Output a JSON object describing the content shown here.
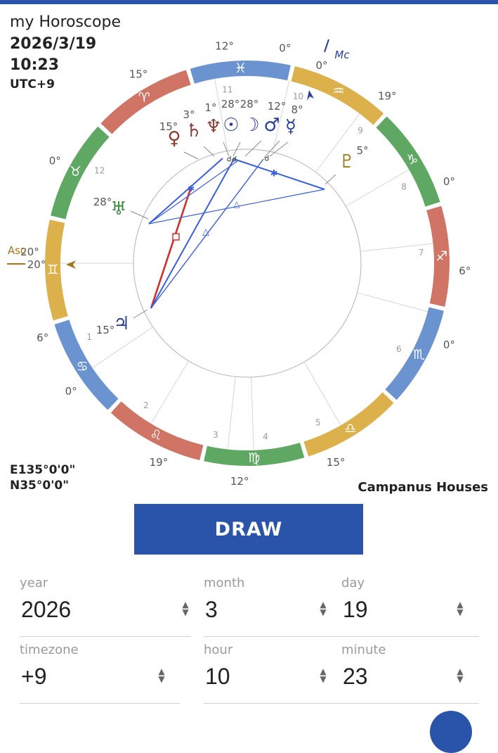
{
  "header": {
    "title": "my Horoscope",
    "date": "2026/3/19",
    "time": "10:23",
    "timezone": "UTC+9"
  },
  "location": {
    "longitude": "E135°0'0\"",
    "latitude": "N35°0'0\""
  },
  "house_system": "Campanus Houses",
  "chart": {
    "asc": {
      "label": "Asc",
      "degree": "20°"
    },
    "mc": {
      "label": "Mc",
      "degree": "0°"
    },
    "zodiac": [
      {
        "sign": "Pisces",
        "glyph": "♓",
        "color": "#6a93cf"
      },
      {
        "sign": "Aries",
        "glyph": "♈",
        "color": "#d07466"
      },
      {
        "sign": "Taurus",
        "glyph": "♉",
        "color": "#5ea863"
      },
      {
        "sign": "Gemini",
        "glyph": "♊",
        "color": "#dcb04a"
      },
      {
        "sign": "Cancer",
        "glyph": "♋",
        "color": "#6a93cf"
      },
      {
        "sign": "Leo",
        "glyph": "♌",
        "color": "#d07466"
      },
      {
        "sign": "Virgo",
        "glyph": "♍",
        "color": "#5ea863"
      },
      {
        "sign": "Libra",
        "glyph": "♎",
        "color": "#dcb04a"
      },
      {
        "sign": "Scorpio",
        "glyph": "♏",
        "color": "#6a93cf"
      },
      {
        "sign": "Sagittarius",
        "glyph": "♐",
        "color": "#d07466"
      },
      {
        "sign": "Capricorn",
        "glyph": "♑",
        "color": "#5ea863"
      },
      {
        "sign": "Aquarius",
        "glyph": "♒",
        "color": "#dcb04a"
      }
    ],
    "cusp_degrees": [
      "20°",
      "6°",
      "0°",
      "19°",
      "12°",
      "15°",
      "0°",
      "6°",
      "0°",
      "19°",
      "0°",
      "12°",
      "15°",
      "0°"
    ],
    "house_numbers": [
      "1",
      "2",
      "3",
      "4",
      "5",
      "6",
      "7",
      "8",
      "9",
      "10",
      "11",
      "12"
    ],
    "planets": [
      {
        "name": "Venus",
        "glyph": "♀",
        "degree": "15°",
        "color": "#8a3a2e"
      },
      {
        "name": "Saturn",
        "glyph": "♄",
        "degree": "3°",
        "color": "#8a3a2e"
      },
      {
        "name": "Neptune",
        "glyph": "♆",
        "degree": "1°",
        "color": "#8a3a2e"
      },
      {
        "name": "Sun",
        "glyph": "☉",
        "degree": "28°",
        "color": "#2a3f9a"
      },
      {
        "name": "Moon",
        "glyph": "☽",
        "degree": "28°",
        "color": "#2a3f9a"
      },
      {
        "name": "Mars",
        "glyph": "♂",
        "degree": "12°",
        "color": "#2a3f9a"
      },
      {
        "name": "Mercury",
        "glyph": "☿",
        "degree": "8°",
        "color": "#2a3f9a"
      },
      {
        "name": "Pluto",
        "glyph": "♇",
        "degree": "5°",
        "color": "#a07a18"
      },
      {
        "name": "Uranus",
        "glyph": "♅",
        "degree": "28°",
        "color": "#3e8a3e"
      },
      {
        "name": "Jupiter",
        "glyph": "♃",
        "degree": "15°",
        "color": "#2a3f9a"
      }
    ],
    "aspect_colors": {
      "red": "#d0302a",
      "blue": "#3a5ee0"
    }
  },
  "draw_button": "DRAW",
  "form": {
    "year": {
      "label": "year",
      "value": "2026"
    },
    "month": {
      "label": "month",
      "value": "3"
    },
    "day": {
      "label": "day",
      "value": "19"
    },
    "timezone": {
      "label": "timezone",
      "value": "+9"
    },
    "hour": {
      "label": "hour",
      "value": "10"
    },
    "minute": {
      "label": "minute",
      "value": "23"
    }
  }
}
